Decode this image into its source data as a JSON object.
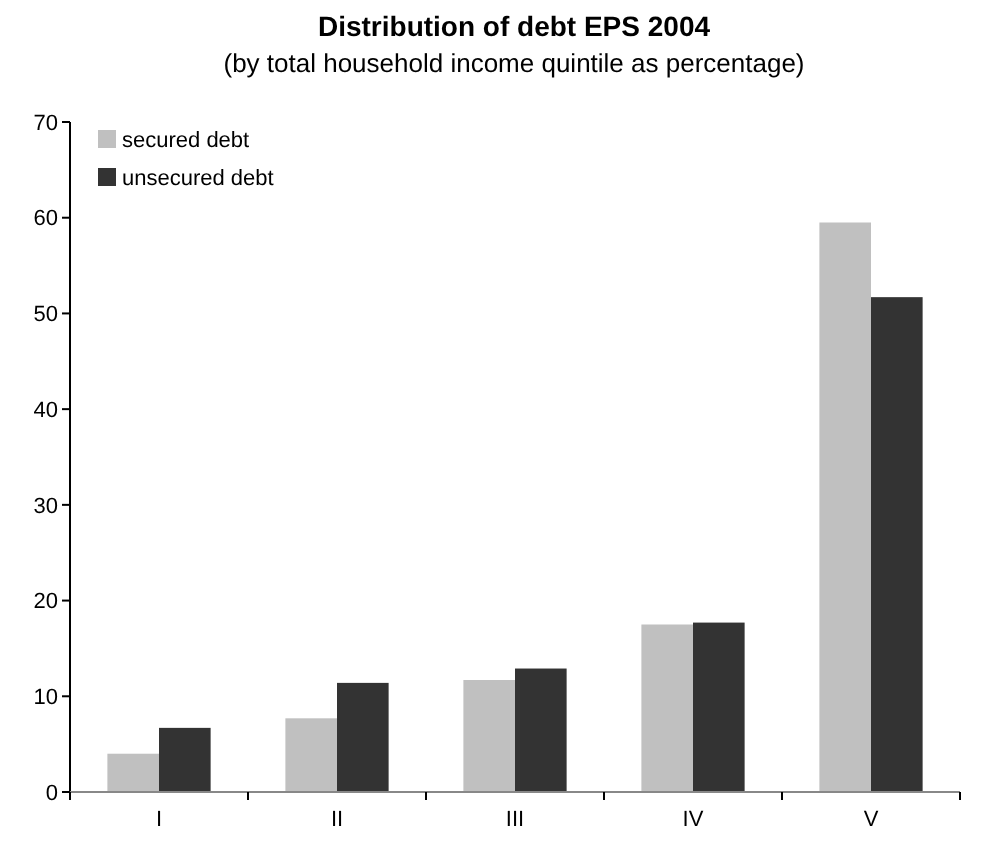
{
  "chart_data": {
    "type": "bar",
    "title": "Distribution of debt EPS 2004",
    "subtitle": "(by total household income quintile as percentage)",
    "categories": [
      "I",
      "II",
      "III",
      "IV",
      "V"
    ],
    "series": [
      {
        "name": "secured debt",
        "color": "#c0c0c0",
        "values": [
          4.0,
          7.7,
          11.7,
          17.5,
          59.5
        ]
      },
      {
        "name": "unsecured debt",
        "color": "#333333",
        "values": [
          6.7,
          11.4,
          12.9,
          17.7,
          51.7
        ]
      }
    ],
    "ylim": [
      0,
      70
    ],
    "yticks": [
      0,
      10,
      20,
      30,
      40,
      50,
      60,
      70
    ],
    "legend": "top left",
    "grid": false
  }
}
